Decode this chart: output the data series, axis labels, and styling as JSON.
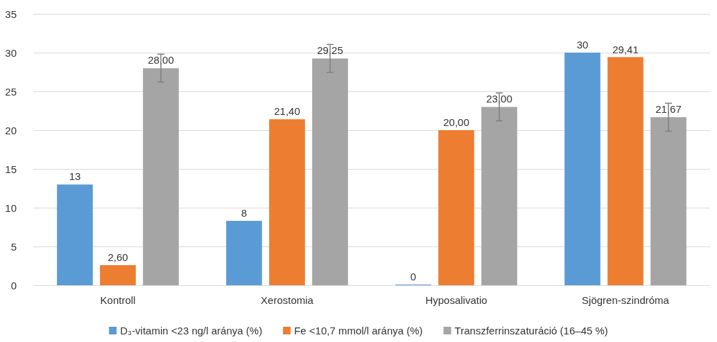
{
  "chart_data": {
    "type": "bar",
    "categories": [
      "Kontroll",
      "Xerostomia",
      "Hyposalivatio",
      "Sjögren-szindróma"
    ],
    "series": [
      {
        "name": "D₃-vitamin <23 ng/l aránya (%)",
        "color": "#5b9bd5",
        "values": [
          13,
          8.3,
          0,
          30
        ],
        "value_labels": [
          "13",
          "8",
          "0",
          "30"
        ]
      },
      {
        "name": "Fe <10,7 mmol/l aránya (%)",
        "color": "#ed7d31",
        "values": [
          2.6,
          21.4,
          20,
          29.41
        ],
        "value_labels": [
          "2,60",
          "21,40",
          "20,00",
          "29,41"
        ]
      },
      {
        "name": "Transzferrinszaturáció (16–45 %)",
        "color": "#a5a5a5",
        "values": [
          28,
          29.25,
          23,
          21.67
        ],
        "value_labels": [
          "28,00",
          "29,25",
          "23,00",
          "21,67"
        ],
        "errors": [
          1.8,
          1.8,
          1.8,
          1.8
        ]
      }
    ],
    "ylim": [
      0,
      35
    ],
    "yticks": [
      0,
      5,
      10,
      15,
      20,
      25,
      30,
      35
    ],
    "grid": "y",
    "legend": "bottom"
  }
}
